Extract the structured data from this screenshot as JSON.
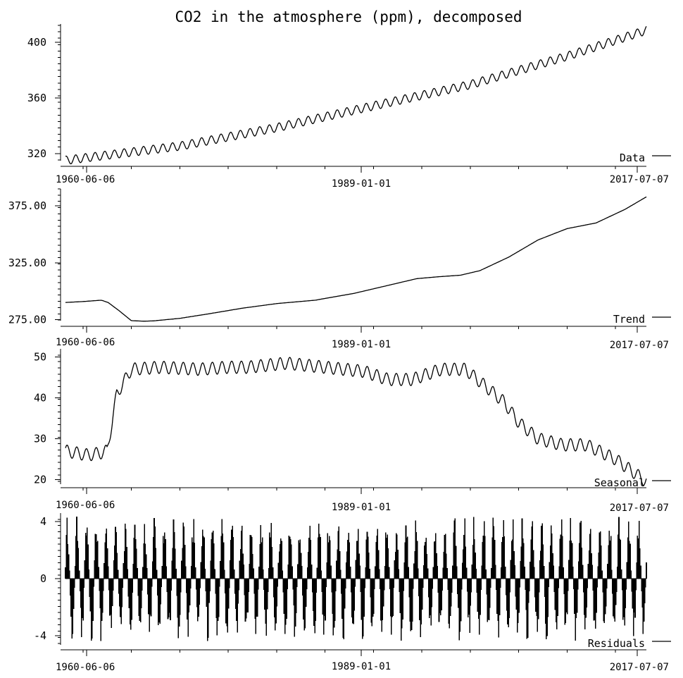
{
  "title": "CO2 in the atmosphere (ppm), decomposed",
  "date_ticks": [
    "1960-06-06",
    "1989-01-01",
    "2017-07-07"
  ],
  "chart_data": [
    {
      "type": "line",
      "name": "Data",
      "legend": "Data",
      "x_range": [
        "1958-03-01",
        "2018-03-01"
      ],
      "y_ticks": [
        320,
        360,
        400
      ],
      "ylim": [
        311,
        412
      ],
      "trend_knots": [
        [
          1958.2,
          315.3
        ],
        [
          1970,
          325.5
        ],
        [
          1980,
          338.7
        ],
        [
          1990,
          354.3
        ],
        [
          2000,
          369.5
        ],
        [
          2010,
          389.9
        ],
        [
          2018.2,
          408.5
        ]
      ],
      "seasonal_amplitude": 3.0,
      "legend_position": "bottom-right"
    },
    {
      "type": "line",
      "name": "Trend",
      "legend": "Trend",
      "y_ticks": [
        275,
        325,
        375
      ],
      "y_tick_labels": [
        "275.00",
        "325.00",
        "375.00"
      ],
      "ylim": [
        269,
        390
      ],
      "x": [
        1958.2,
        1960.0,
        1961.9,
        1962.6,
        1963.7,
        1965.0,
        1966.3,
        1967.3,
        1970.0,
        1973.0,
        1976.5,
        1980.0,
        1984.0,
        1988.0,
        1992.0,
        1994.5,
        1996.5,
        1999.0,
        2001.0,
        2004.0,
        2007.0,
        2010.0,
        2013.0,
        2016.0,
        2018.2
      ],
      "values": [
        290.0,
        290.8,
        292.0,
        290.0,
        283.0,
        274.0,
        273.5,
        273.8,
        276.0,
        280.0,
        285.0,
        289.0,
        292.0,
        298.0,
        306.0,
        311.0,
        312.5,
        314.0,
        318.0,
        330.0,
        345.0,
        355.0,
        360.0,
        372.0,
        383.0
      ],
      "legend_position": "bottom-right"
    },
    {
      "type": "line",
      "name": "Seasonal",
      "legend": "Seasonal",
      "y_ticks": [
        20,
        30,
        40,
        50
      ],
      "ylim": [
        18,
        52
      ],
      "x": [
        1958.2,
        1960.5,
        1961.8,
        1962.5,
        1963.5,
        1965.0,
        1968.0,
        1972.0,
        1975.0,
        1977.0,
        1981.0,
        1985.0,
        1989.0,
        1991.5,
        1994.0,
        1997.0,
        1999.5,
        2001.5,
        2003.5,
        2005.0,
        2007.0,
        2009.5,
        2012.0,
        2015.0,
        2018.2
      ],
      "values": [
        27.0,
        26.0,
        26.5,
        27.0,
        41.0,
        47.0,
        47.5,
        47.0,
        47.5,
        47.5,
        48.5,
        47.5,
        46.5,
        44.5,
        44.5,
        47.0,
        47.0,
        43.0,
        39.0,
        34.0,
        30.0,
        28.5,
        28.5,
        25.0,
        19.5
      ],
      "wiggle_amplitude": 1.5,
      "legend_position": "bottom-right"
    },
    {
      "type": "bar",
      "name": "Residuals",
      "legend": "Residuals",
      "y_ticks": [
        -4,
        0,
        4
      ],
      "ylim": [
        -5,
        4.6
      ],
      "value_range": [
        -4.5,
        4.5
      ],
      "legend_position": "bottom-right"
    }
  ]
}
